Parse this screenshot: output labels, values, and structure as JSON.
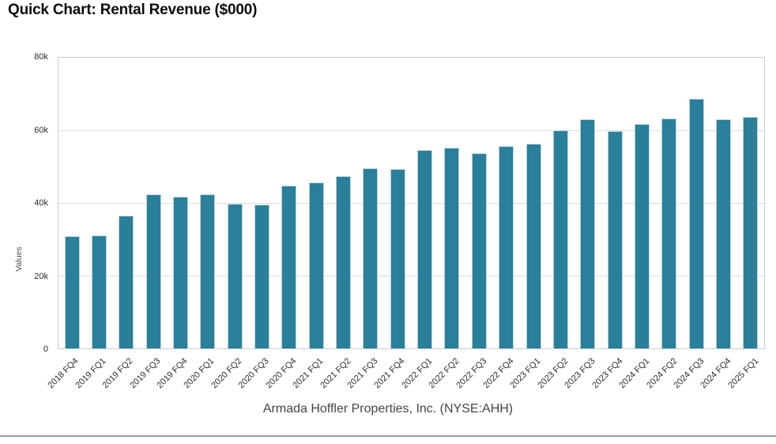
{
  "page": {
    "title": "Quick Chart: Rental Revenue ($000)",
    "caption": "Armada Hoffler Properties, Inc. (NYSE:AHH)"
  },
  "chart_data": {
    "type": "bar",
    "title": "Quick Chart: Rental Revenue ($000)",
    "subtitle": "",
    "xlabel": "",
    "ylabel": "Values",
    "ylim": [
      0,
      80000
    ],
    "ytick_labels": [
      "80k",
      "60k",
      "40k",
      "20k",
      "0"
    ],
    "ytick_values": [
      80000,
      60000,
      40000,
      20000,
      0
    ],
    "grid": "horizontal",
    "legend_position": "none",
    "bar_color": "#2A7F9A",
    "bar_edge_color": "#B7D6E2",
    "categories": [
      "2018 FQ4",
      "2019 FQ1",
      "2019 FQ2",
      "2019 FQ3",
      "2019 FQ4",
      "2020 FQ1",
      "2020 FQ2",
      "2020 FQ3",
      "2020 FQ4",
      "2021 FQ1",
      "2021 FQ2",
      "2021 FQ3",
      "2021 FQ4",
      "2022 FQ1",
      "2022 FQ2",
      "2022 FQ3",
      "2022 FQ4",
      "2023 FQ1",
      "2023 FQ2",
      "2023 FQ3",
      "2023 FQ4",
      "2024 FQ1",
      "2024 FQ2",
      "2024 FQ3",
      "2024 FQ4",
      "2025 FQ1"
    ],
    "values": [
      30800,
      31000,
      36500,
      42300,
      41800,
      42300,
      39800,
      39600,
      44700,
      45700,
      47400,
      49600,
      49400,
      54600,
      55200,
      53700,
      55600,
      56200,
      60100,
      63000,
      59800,
      61700,
      63200,
      68600,
      63000,
      63800
    ],
    "footer_source": "Armada Hoffler Properties, Inc. (NYSE:AHH)"
  }
}
